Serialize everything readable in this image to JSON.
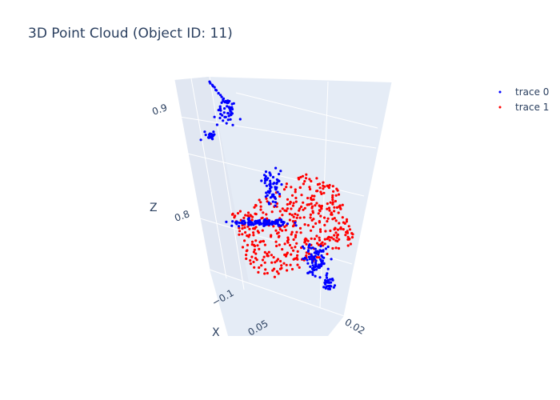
{
  "chart_data": {
    "type": "scatter",
    "title": "3D Point Cloud (Object ID: 11)",
    "axes": {
      "x": {
        "label": "X",
        "ticks": [
          "−0.1",
          "0.05"
        ]
      },
      "y": {
        "label": "",
        "ticks": [
          "0.02"
        ]
      },
      "z": {
        "label": "Z",
        "ticks": [
          "0.9",
          "0.8"
        ]
      }
    },
    "legend": {
      "placement": "top-right"
    },
    "series": [
      {
        "name": "trace 0",
        "color": "#0000ff",
        "point_count": "approx 400"
      },
      {
        "name": "trace 1",
        "color": "#ff0000",
        "point_count": "approx 400"
      }
    ],
    "colors": {
      "background": "#e5ecf6",
      "grid": "#ffffff",
      "text": "#2a3f5f"
    }
  }
}
